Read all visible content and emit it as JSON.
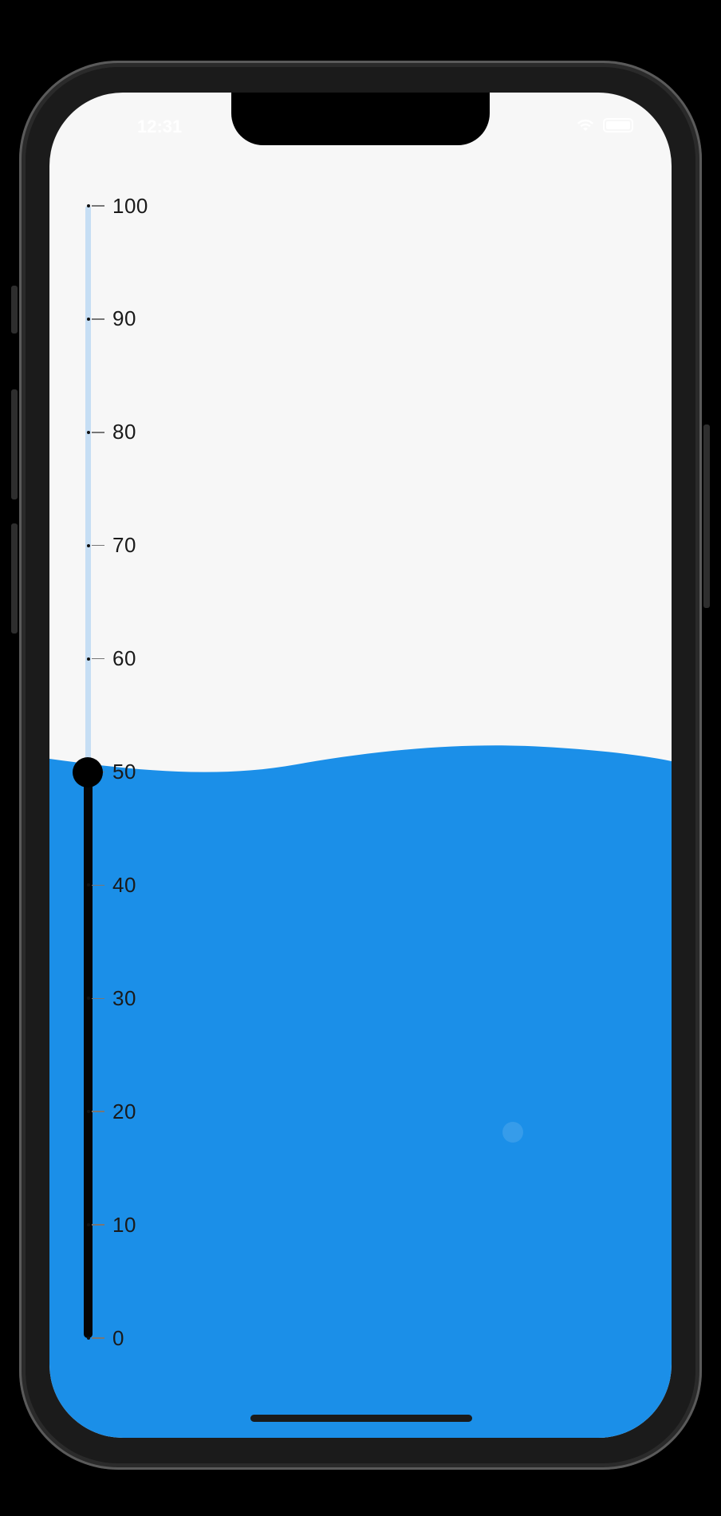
{
  "colors": {
    "water": "#1b8fe8",
    "background": "#f7f7f7",
    "track_upper": "#c6def4",
    "track_lower": "#050505",
    "thumb": "#000000"
  },
  "status_bar": {
    "time": "12:31"
  },
  "slider": {
    "value": 50,
    "min": 0,
    "max": 100,
    "ticks": [
      {
        "label": "100",
        "value": 100
      },
      {
        "label": "90",
        "value": 90
      },
      {
        "label": "80",
        "value": 80
      },
      {
        "label": "70",
        "value": 70
      },
      {
        "label": "60",
        "value": 60
      },
      {
        "label": "50",
        "value": 50
      },
      {
        "label": "40",
        "value": 40
      },
      {
        "label": "30",
        "value": 30
      },
      {
        "label": "20",
        "value": 20
      },
      {
        "label": "10",
        "value": 10
      },
      {
        "label": "0",
        "value": 0
      }
    ]
  }
}
